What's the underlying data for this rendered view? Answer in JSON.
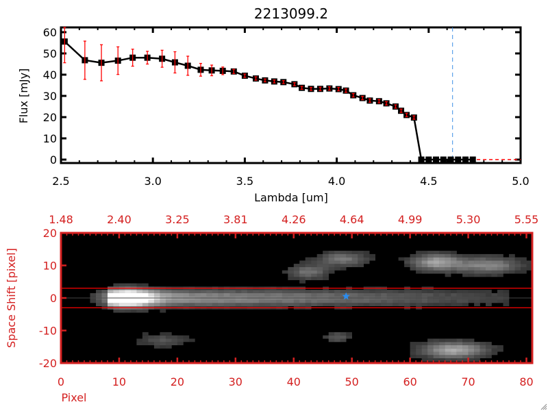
{
  "chart_data": [
    {
      "type": "line",
      "title": "2213099.2",
      "xlabel": "Lambda [um]",
      "ylabel": "Flux [mJy]",
      "xlim": [
        2.5,
        5.0
      ],
      "ylim": [
        0,
        60
      ],
      "xticks": [
        "2.5",
        "3.0",
        "3.5",
        "4.0",
        "4.5",
        "5.0"
      ],
      "yticks": [
        "0",
        "10",
        "20",
        "30",
        "40",
        "50",
        "60"
      ],
      "colors": {
        "line": "#000000",
        "errorbar": "#ff0000",
        "zero_line": "#ff0000",
        "marker_line": "#3a8ee6"
      },
      "marker_line_x": 4.63,
      "x": [
        2.52,
        2.63,
        2.72,
        2.81,
        2.89,
        2.97,
        3.05,
        3.12,
        3.19,
        3.26,
        3.32,
        3.38,
        3.44,
        3.5,
        3.56,
        3.61,
        3.66,
        3.71,
        3.77,
        3.81,
        3.86,
        3.91,
        3.96,
        4.01,
        4.05,
        4.09,
        4.14,
        4.18,
        4.23,
        4.27,
        4.32,
        4.35,
        4.38,
        4.42,
        4.46,
        4.5,
        4.54,
        4.58,
        4.62,
        4.66,
        4.7,
        4.74
      ],
      "y": [
        55.6,
        46.8,
        45.6,
        46.6,
        48.0,
        48.0,
        47.5,
        45.8,
        44.2,
        42.3,
        42.0,
        41.8,
        41.5,
        39.5,
        38.2,
        37.3,
        36.8,
        36.5,
        35.5,
        33.8,
        33.3,
        33.3,
        33.5,
        33.2,
        32.5,
        30.3,
        29.0,
        27.8,
        27.5,
        26.5,
        25.0,
        23.0,
        21.0,
        19.8,
        0,
        0,
        0,
        0,
        0,
        0,
        0,
        0
      ],
      "yerr": [
        10,
        9,
        8.5,
        6.5,
        4,
        3,
        4,
        5,
        4.5,
        3,
        2.5,
        1.8,
        1,
        0.8,
        0.8,
        0.7,
        0.7,
        0.7,
        0.7,
        0.7,
        0.7,
        0.8,
        0.8,
        0.8,
        0.8,
        0.8,
        0.8,
        0.8,
        0.8,
        0.8,
        0.8,
        0.8,
        0.8,
        0.8,
        0,
        0,
        0,
        0,
        0,
        0,
        0,
        0
      ]
    },
    {
      "type": "heatmap",
      "xlabel": "Pixel",
      "ylabel": "Space Shift [pixel]",
      "xlim": [
        0,
        81
      ],
      "ylim": [
        -20,
        20
      ],
      "xticks": [
        "0",
        "10",
        "20",
        "30",
        "40",
        "50",
        "60",
        "70",
        "80"
      ],
      "yticks": [
        "-20",
        "-10",
        "0",
        "10",
        "20"
      ],
      "top_xticks": [
        "1.48",
        "2.40",
        "3.25",
        "3.81",
        "4.26",
        "4.64",
        "4.99",
        "5.30",
        "5.55"
      ],
      "colors": {
        "axis": "#d42020",
        "aperture": "#ff0000",
        "center": "#000000",
        "star": "#2a8cf0"
      },
      "aperture_shift": [
        -3,
        3
      ],
      "star": {
        "pixel": 49,
        "shift": 0.5
      },
      "sources": [
        {
          "pixel": 11,
          "shift": 0,
          "peak": 1.0,
          "sx": 3,
          "sy": 1.8
        },
        {
          "pixel": 40,
          "shift": 0,
          "peak": 0.6,
          "sx": 30,
          "sy": 1.8
        },
        {
          "pixel": 64,
          "shift": 11,
          "peak": 0.55,
          "sx": 3,
          "sy": 1.8
        },
        {
          "pixel": 73,
          "shift": 10,
          "peak": 0.45,
          "sx": 4,
          "sy": 1.8
        },
        {
          "pixel": 48,
          "shift": 12,
          "peak": 0.38,
          "sx": 3,
          "sy": 1.6
        },
        {
          "pixel": 42,
          "shift": 8,
          "peak": 0.35,
          "sx": 2.5,
          "sy": 1.6
        },
        {
          "pixel": 67,
          "shift": -16,
          "peak": 0.6,
          "sx": 4,
          "sy": 1.8
        },
        {
          "pixel": 17,
          "shift": -13,
          "peak": 0.22,
          "sx": 3,
          "sy": 1.5
        },
        {
          "pixel": 47,
          "shift": -12,
          "peak": 0.25,
          "sx": 1.5,
          "sy": 1.2
        }
      ]
    }
  ]
}
